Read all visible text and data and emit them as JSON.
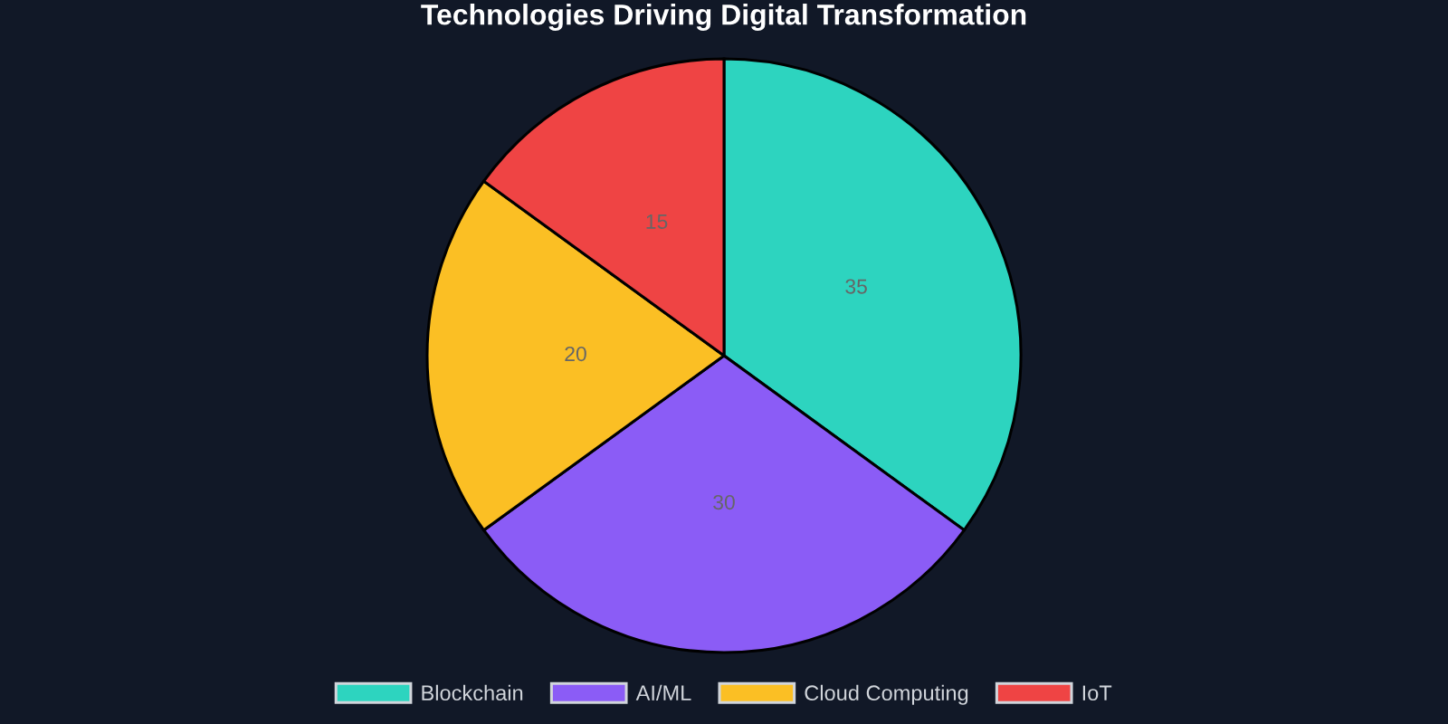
{
  "chart_data": {
    "type": "pie",
    "title": "Technologies Driving Digital Transformation",
    "categories": [
      "Blockchain",
      "AI/ML",
      "Cloud Computing",
      "IoT"
    ],
    "values": [
      35,
      30,
      20,
      15
    ],
    "colors": [
      "#2dd4bf",
      "#8b5cf6",
      "#fbbf24",
      "#ef4444"
    ],
    "data_labels": true,
    "legend": "bottom"
  }
}
